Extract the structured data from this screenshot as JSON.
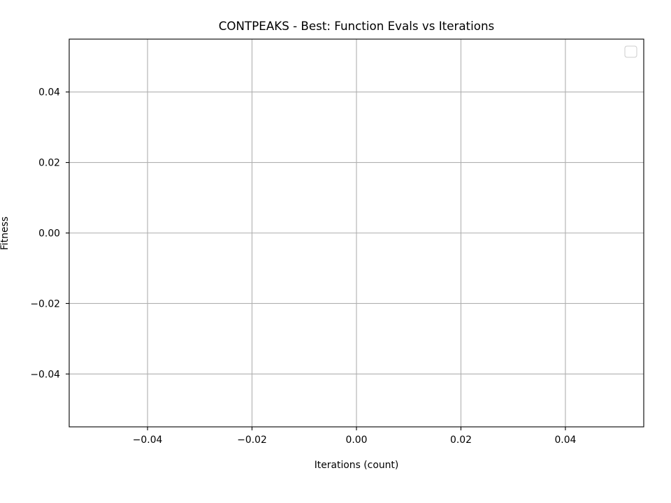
{
  "chart_data": {
    "type": "line",
    "title": "CONTPEAKS - Best: Function Evals vs Iterations",
    "xlabel": "Iterations (count)",
    "ylabel": "Fitness",
    "xlim": [
      -0.055,
      0.055
    ],
    "ylim": [
      -0.055,
      0.055
    ],
    "x_ticks": [
      -0.04,
      -0.02,
      0.0,
      0.02,
      0.04
    ],
    "x_tick_labels": [
      "−0.04",
      "−0.02",
      "0.00",
      "0.02",
      "0.04"
    ],
    "y_ticks": [
      -0.04,
      -0.02,
      0.0,
      0.02,
      0.04
    ],
    "y_tick_labels": [
      "−0.04",
      "−0.02",
      "0.00",
      "0.02",
      "0.04"
    ],
    "grid": true,
    "legend_placement": "top-right",
    "series": [],
    "colors": {
      "grid": "#b0b0b0",
      "axes": "#000000",
      "background": "#ffffff",
      "legend_border": "#cccccc"
    }
  }
}
